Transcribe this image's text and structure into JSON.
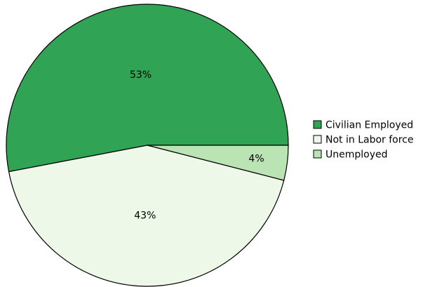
{
  "chart_data": {
    "type": "pie",
    "categories": [
      "Civilian Employed",
      "Not in Labor force",
      "Unemployed"
    ],
    "values": [
      53,
      43,
      4
    ],
    "labels": [
      "53%",
      "43%",
      "4%"
    ],
    "colors": [
      "#31a354",
      "#edf8e9",
      "#bae4b3"
    ],
    "start_angle_deg": 0,
    "direction": "counterclockwise",
    "legend": {
      "entries": [
        "Civilian Employed",
        "Not in Labor force",
        "Unemployed"
      ],
      "placement": "right"
    }
  }
}
